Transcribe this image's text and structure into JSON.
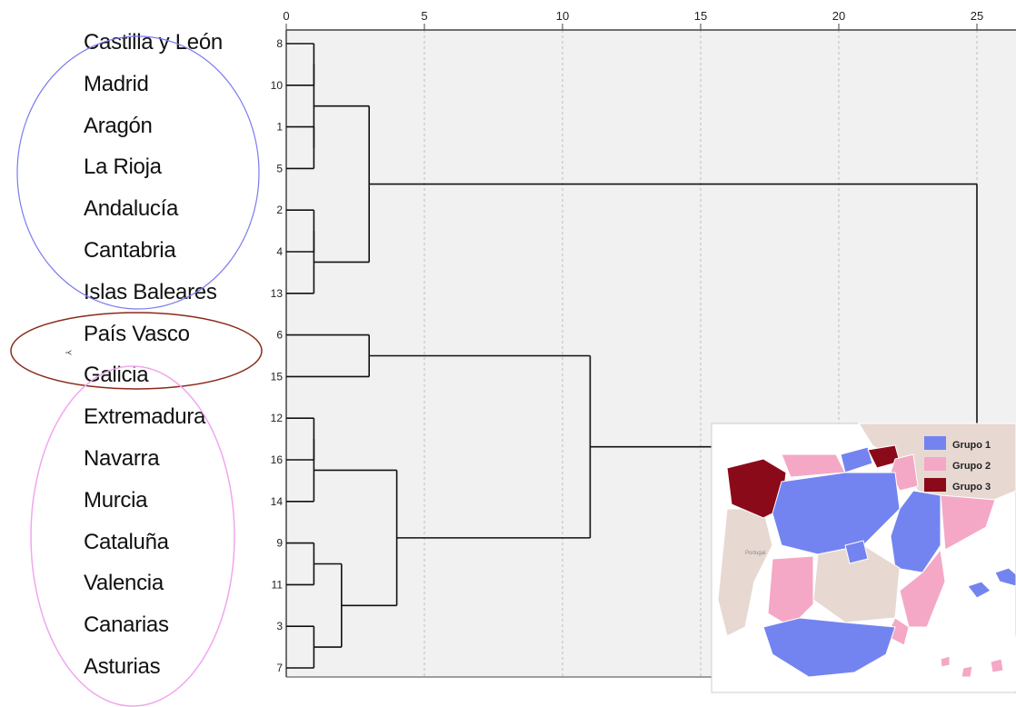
{
  "axis": {
    "ticks": [
      "0",
      "5",
      "10",
      "15",
      "20",
      "25"
    ],
    "range": [
      0,
      25
    ]
  },
  "regions": [
    {
      "name": "Castilla y León",
      "case": "8"
    },
    {
      "name": "Madrid",
      "case": "10"
    },
    {
      "name": "Aragón",
      "case": "1"
    },
    {
      "name": "La Rioja",
      "case": "5"
    },
    {
      "name": "Andalucía",
      "case": "2"
    },
    {
      "name": "Cantabria",
      "case": "4"
    },
    {
      "name": "Islas Baleares",
      "case": "13"
    },
    {
      "name": "País Vasco",
      "case": "6"
    },
    {
      "name": "Galicia",
      "case": "15"
    },
    {
      "name": "Extremadura",
      "case": "12"
    },
    {
      "name": "Navarra",
      "case": "16"
    },
    {
      "name": "Murcia",
      "case": "14"
    },
    {
      "name": "Cataluña",
      "case": "9"
    },
    {
      "name": "Valencia",
      "case": "11"
    },
    {
      "name": "Canarias",
      "case": "3"
    },
    {
      "name": "Asturias",
      "case": "7"
    }
  ],
  "merges": [
    {
      "a": "L0",
      "b": "L1",
      "d": 1
    },
    {
      "a": "L2",
      "b": "L3",
      "d": 1
    },
    {
      "a": "M0",
      "b": "M1",
      "d": 1
    },
    {
      "a": "L4",
      "b": "L5",
      "d": 1
    },
    {
      "a": "M3",
      "b": "L6",
      "d": 1
    },
    {
      "a": "M2",
      "b": "M4",
      "d": 3
    },
    {
      "a": "L7",
      "b": "L8",
      "d": 3
    },
    {
      "a": "L9",
      "b": "L10",
      "d": 1
    },
    {
      "a": "M7",
      "b": "L11",
      "d": 1
    },
    {
      "a": "L12",
      "b": "L13",
      "d": 1
    },
    {
      "a": "L14",
      "b": "L15",
      "d": 1
    },
    {
      "a": "M9",
      "b": "M10",
      "d": 2
    },
    {
      "a": "M8",
      "b": "M11",
      "d": 4
    },
    {
      "a": "M6",
      "b": "M12",
      "d": 11
    },
    {
      "a": "M5",
      "b": "M13",
      "d": 25
    }
  ],
  "cluster_marks": {
    "stray_glyph": "Y"
  },
  "map": {
    "legend": [
      {
        "label": "Grupo 1",
        "color": "#7384f0"
      },
      {
        "label": "Grupo 2",
        "color": "#f4a8c6"
      },
      {
        "label": "Grupo 3",
        "color": "#8b0a1a"
      }
    ],
    "other_color": "#e7d9d2",
    "sea_color": "#ffffff",
    "tiny_label": "Portugal"
  },
  "colors": {
    "group1_ellipse": "#7b7bf0",
    "group3_ellipse": "#8a2a1a",
    "group2_ellipse": "#f1a6ef"
  }
}
